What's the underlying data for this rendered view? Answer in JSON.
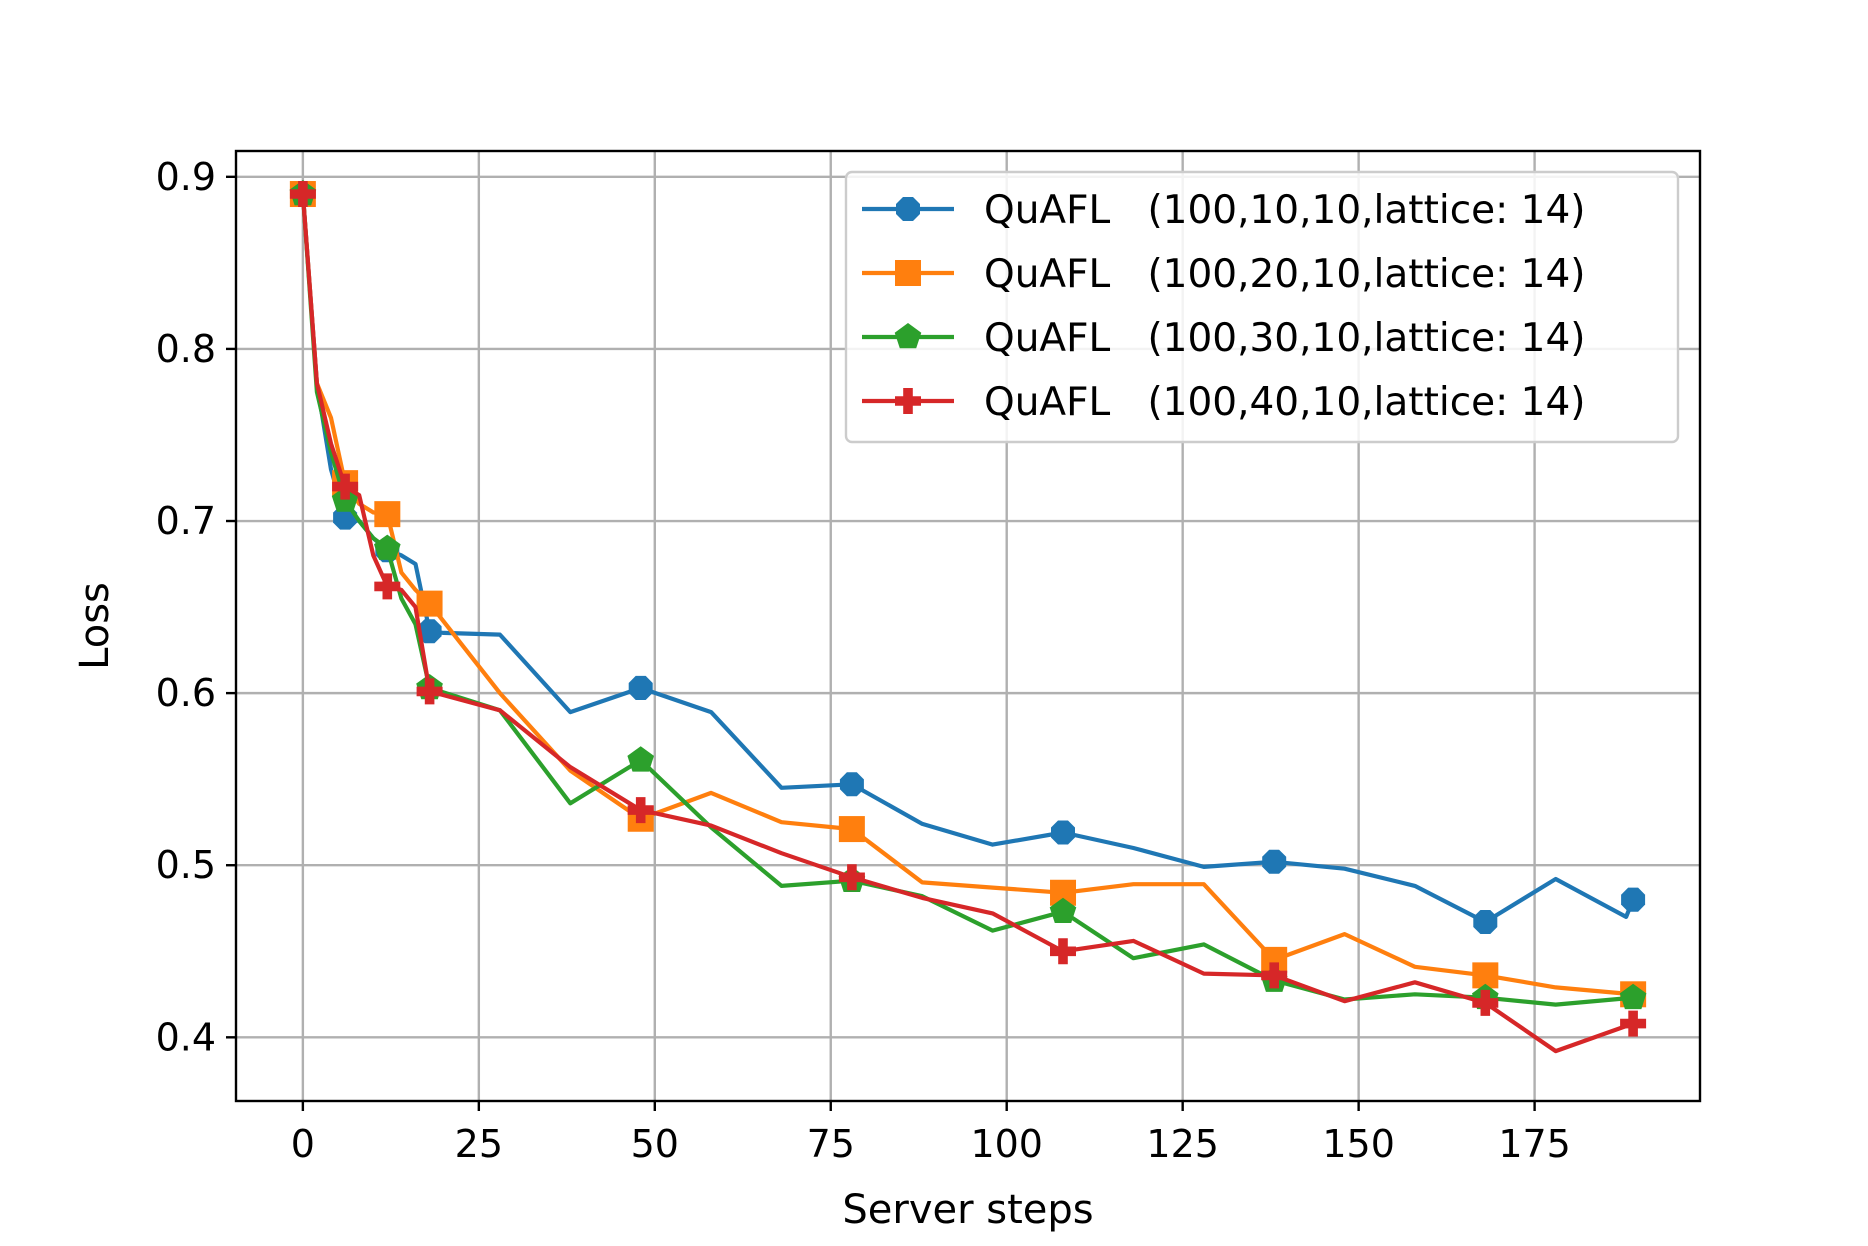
{
  "chart_data": {
    "type": "line",
    "title": "",
    "xlabel": "Server steps",
    "ylabel": "Loss",
    "xlim": [
      -9.5,
      198.5
    ],
    "ylim": [
      0.363,
      0.915
    ],
    "xticks": [
      0,
      25,
      50,
      75,
      100,
      125,
      150,
      175
    ],
    "xtick_labels": [
      "0",
      "25",
      "50",
      "75",
      "100",
      "125",
      "150",
      "175"
    ],
    "yticks": [
      0.4,
      0.5,
      0.6,
      0.7,
      0.8,
      0.9
    ],
    "ytick_labels": [
      "0.4",
      "0.5",
      "0.6",
      "0.7",
      "0.8",
      "0.9"
    ],
    "grid": true,
    "legend_position": "top-right",
    "series": [
      {
        "name": "QuAFL   (100,10,10,lattice: 14)",
        "color": "#1f77b4",
        "marker": "octagon",
        "x": [
          0,
          2,
          4,
          6,
          8,
          10,
          12,
          14,
          16,
          18,
          20,
          28,
          38,
          48,
          58,
          68,
          78,
          88,
          98,
          108,
          118,
          128,
          138,
          148,
          158,
          168,
          178,
          188,
          189
        ],
        "y": [
          0.89,
          0.78,
          0.73,
          0.702,
          0.7,
          0.69,
          0.683,
          0.68,
          0.675,
          0.636,
          0.635,
          0.634,
          0.589,
          0.603,
          0.589,
          0.545,
          0.547,
          0.524,
          0.512,
          0.519,
          0.51,
          0.499,
          0.502,
          0.498,
          0.488,
          0.467,
          0.492,
          0.47,
          0.48
        ],
        "marker_x": [
          0,
          6,
          12,
          18,
          48,
          78,
          108,
          138,
          168,
          189
        ],
        "marker_y": [
          0.89,
          0.702,
          0.683,
          0.636,
          0.603,
          0.547,
          0.519,
          0.502,
          0.467,
          0.48
        ]
      },
      {
        "name": "QuAFL   (100,20,10,lattice: 14)",
        "color": "#ff7f0e",
        "marker": "square",
        "x": [
          0,
          2,
          4,
          6,
          8,
          10,
          12,
          14,
          16,
          18,
          28,
          38,
          48,
          58,
          68,
          78,
          88,
          98,
          108,
          118,
          128,
          138,
          148,
          158,
          168,
          178,
          189
        ],
        "y": [
          0.89,
          0.78,
          0.76,
          0.722,
          0.71,
          0.705,
          0.704,
          0.67,
          0.66,
          0.652,
          0.6,
          0.555,
          0.527,
          0.542,
          0.525,
          0.521,
          0.49,
          0.487,
          0.484,
          0.489,
          0.489,
          0.445,
          0.46,
          0.441,
          0.436,
          0.429,
          0.425
        ],
        "marker_x": [
          0,
          6,
          12,
          18,
          48,
          78,
          108,
          138,
          168,
          189
        ],
        "marker_y": [
          0.89,
          0.722,
          0.704,
          0.652,
          0.527,
          0.521,
          0.484,
          0.445,
          0.436,
          0.425
        ]
      },
      {
        "name": "QuAFL   (100,30,10,lattice: 14)",
        "color": "#2ca02c",
        "marker": "pentagon",
        "x": [
          0,
          2,
          4,
          6,
          8,
          10,
          12,
          14,
          16,
          18,
          28,
          38,
          48,
          58,
          68,
          78,
          88,
          98,
          108,
          118,
          128,
          138,
          148,
          158,
          168,
          178,
          189
        ],
        "y": [
          0.89,
          0.775,
          0.74,
          0.712,
          0.7,
          0.69,
          0.684,
          0.655,
          0.64,
          0.603,
          0.59,
          0.536,
          0.561,
          0.522,
          0.488,
          0.491,
          0.482,
          0.462,
          0.473,
          0.446,
          0.454,
          0.433,
          0.422,
          0.425,
          0.423,
          0.419,
          0.423
        ],
        "marker_x": [
          0,
          6,
          12,
          18,
          48,
          78,
          108,
          138,
          168,
          189
        ],
        "marker_y": [
          0.89,
          0.712,
          0.684,
          0.603,
          0.561,
          0.491,
          0.473,
          0.433,
          0.423,
          0.423
        ]
      },
      {
        "name": "QuAFL   (100,40,10,lattice: 14)",
        "color": "#d62728",
        "marker": "plus",
        "x": [
          0,
          2,
          4,
          6,
          8,
          10,
          12,
          14,
          16,
          18,
          28,
          38,
          48,
          58,
          68,
          78,
          88,
          98,
          108,
          118,
          128,
          138,
          148,
          158,
          168,
          178,
          189
        ],
        "y": [
          0.89,
          0.78,
          0.745,
          0.72,
          0.715,
          0.68,
          0.662,
          0.66,
          0.65,
          0.601,
          0.59,
          0.557,
          0.532,
          0.523,
          0.507,
          0.493,
          0.481,
          0.472,
          0.45,
          0.456,
          0.437,
          0.436,
          0.421,
          0.432,
          0.42,
          0.392,
          0.408
        ],
        "marker_x": [
          0,
          6,
          12,
          18,
          48,
          78,
          108,
          138,
          168,
          189
        ],
        "marker_y": [
          0.89,
          0.72,
          0.662,
          0.601,
          0.532,
          0.493,
          0.45,
          0.436,
          0.42,
          0.408
        ]
      }
    ]
  }
}
